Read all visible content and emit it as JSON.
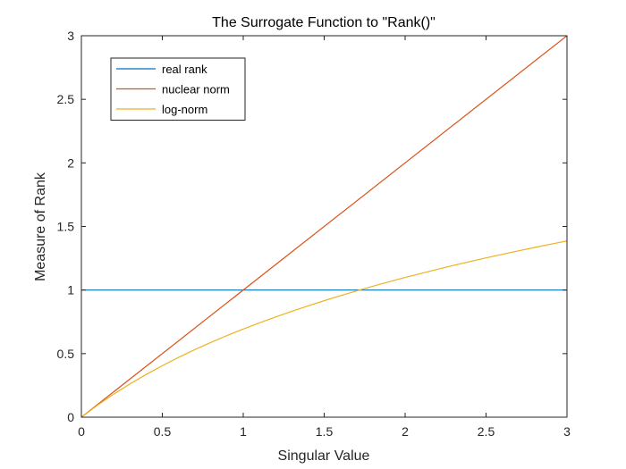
{
  "chart_data": {
    "type": "line",
    "title": "The Surrogate Function to \"Rank()\"",
    "xlabel": "Singular Value",
    "ylabel": "Measure of Rank",
    "xlim": [
      0,
      3
    ],
    "ylim": [
      0,
      3
    ],
    "xticks": [
      0,
      0.5,
      1,
      1.5,
      2,
      2.5,
      3
    ],
    "yticks": [
      0,
      0.5,
      1,
      1.5,
      2,
      2.5,
      3
    ],
    "xtick_labels": [
      "0",
      "0.5",
      "1",
      "1.5",
      "2",
      "2.5",
      "3"
    ],
    "ytick_labels": [
      "0",
      "0.5",
      "1",
      "1.5",
      "2",
      "2.5",
      "3"
    ],
    "grid": false,
    "legend_position": "top-left",
    "series": [
      {
        "name": "real rank",
        "color": "#0072BD",
        "x": [
          0,
          3
        ],
        "y": [
          1,
          1
        ]
      },
      {
        "name": "nuclear norm",
        "color": "#D95319",
        "x": [
          0,
          3
        ],
        "y": [
          0,
          3
        ]
      },
      {
        "name": "log-norm",
        "color": "#EDB120",
        "x": [
          0,
          0.1,
          0.2,
          0.3,
          0.4,
          0.5,
          0.6,
          0.7,
          0.8,
          0.9,
          1.0,
          1.1,
          1.2,
          1.3,
          1.4,
          1.5,
          1.6,
          1.7,
          1.8,
          1.9,
          2.0,
          2.1,
          2.2,
          2.3,
          2.4,
          2.5,
          2.6,
          2.7,
          2.8,
          2.9,
          3.0
        ],
        "y": [
          0,
          0.095,
          0.182,
          0.262,
          0.336,
          0.405,
          0.47,
          0.531,
          0.588,
          0.642,
          0.693,
          0.742,
          0.788,
          0.833,
          0.875,
          0.916,
          0.956,
          0.993,
          1.03,
          1.065,
          1.099,
          1.131,
          1.163,
          1.194,
          1.224,
          1.253,
          1.281,
          1.308,
          1.335,
          1.361,
          1.386
        ]
      }
    ]
  }
}
